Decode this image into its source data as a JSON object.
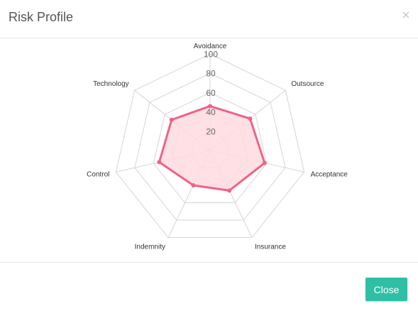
{
  "modal": {
    "title": "Risk Profile",
    "close_icon_glyph": "×",
    "close_button_label": "Close"
  },
  "colors": {
    "accent": "#2ebfa5",
    "series_line": "#ef6384",
    "series_fill": "#ffdbe1",
    "grid": "#d5d5d5"
  },
  "chart_data": {
    "type": "radar",
    "labels": [
      "Avoidance",
      "Outsource",
      "Acceptance",
      "Insurance",
      "Indemnity",
      "Control",
      "Technology"
    ],
    "series": [
      {
        "values": [
          46,
          53,
          58,
          46,
          40,
          54,
          51
        ]
      }
    ],
    "r_range": [
      0,
      100
    ],
    "r_ticks": [
      20,
      40,
      60,
      80,
      100
    ],
    "grid": true,
    "legend": "none"
  }
}
